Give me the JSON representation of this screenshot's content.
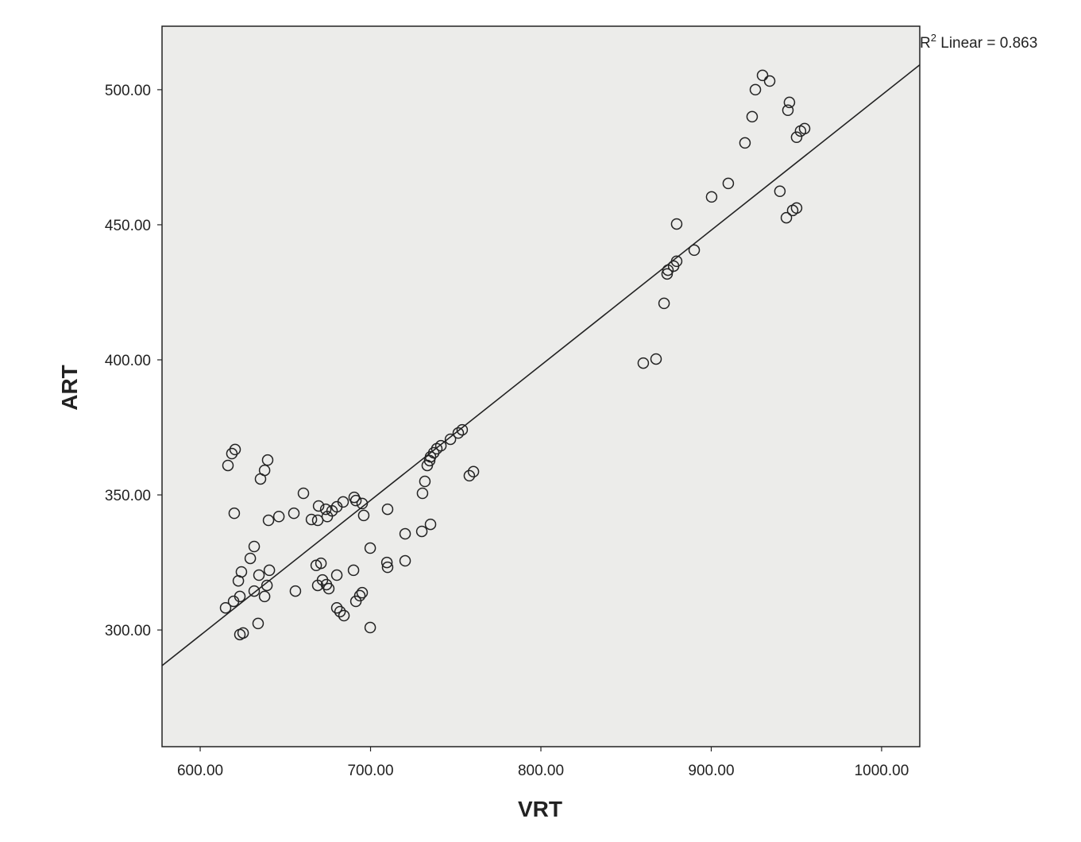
{
  "chart_data": {
    "type": "scatter",
    "title": "",
    "xlabel": "VRT",
    "ylabel": "ART",
    "xlim": [
      577.6,
      1022.4
    ],
    "ylim": [
      256.8,
      523.5
    ],
    "grid": false,
    "background": "#ececea",
    "xticks": [
      600,
      700,
      800,
      900,
      1000
    ],
    "yticks": [
      300,
      350,
      400,
      450,
      500
    ],
    "xtick_labels": [
      "600.00",
      "700.00",
      "800.00",
      "900.00",
      "1000.00"
    ],
    "ytick_labels": [
      "300.00",
      "350.00",
      "400.00",
      "450.00",
      "500.00"
    ],
    "fit_line": {
      "type": "linear",
      "intercept": -2.0,
      "slope": 0.5,
      "r2": 0.863
    },
    "annotation": {
      "prefix": "R",
      "sup": "2",
      "suffix": " Linear = 0.863"
    },
    "points": [
      [
        930.1,
        505.3
      ],
      [
        934.3,
        503.2
      ],
      [
        925.9,
        500.0
      ],
      [
        945.9,
        495.3
      ],
      [
        945.0,
        492.4
      ],
      [
        924.0,
        490.0
      ],
      [
        954.8,
        485.6
      ],
      [
        952.4,
        484.7
      ],
      [
        950.1,
        482.4
      ],
      [
        919.8,
        480.3
      ],
      [
        910.0,
        465.3
      ],
      [
        900.2,
        460.3
      ],
      [
        940.3,
        462.4
      ],
      [
        950.1,
        456.2
      ],
      [
        947.8,
        455.3
      ],
      [
        944.1,
        452.6
      ],
      [
        879.7,
        450.3
      ],
      [
        890.0,
        440.6
      ],
      [
        879.7,
        436.5
      ],
      [
        877.9,
        434.7
      ],
      [
        874.6,
        433.2
      ],
      [
        874.1,
        431.8
      ],
      [
        872.3,
        420.9
      ],
      [
        867.6,
        400.3
      ],
      [
        860.1,
        398.8
      ],
      [
        753.8,
        374.1
      ],
      [
        751.5,
        372.9
      ],
      [
        746.9,
        370.6
      ],
      [
        741.3,
        368.2
      ],
      [
        738.9,
        367.1
      ],
      [
        737.1,
        365.6
      ],
      [
        735.2,
        364.1
      ],
      [
        734.7,
        362.7
      ],
      [
        733.3,
        360.9
      ],
      [
        760.4,
        358.6
      ],
      [
        758.0,
        357.1
      ],
      [
        731.9,
        355.0
      ],
      [
        730.5,
        350.6
      ],
      [
        620.5,
        366.8
      ],
      [
        618.6,
        365.3
      ],
      [
        616.3,
        360.9
      ],
      [
        639.6,
        362.9
      ],
      [
        637.8,
        359.1
      ],
      [
        635.4,
        355.9
      ],
      [
        620.0,
        343.2
      ],
      [
        660.6,
        350.6
      ],
      [
        655.0,
        343.2
      ],
      [
        646.2,
        342.0
      ],
      [
        640.1,
        340.6
      ],
      [
        665.3,
        340.9
      ],
      [
        669.0,
        340.6
      ],
      [
        669.5,
        345.9
      ],
      [
        673.7,
        344.7
      ],
      [
        674.6,
        342.0
      ],
      [
        677.4,
        344.1
      ],
      [
        680.2,
        345.6
      ],
      [
        683.9,
        347.4
      ],
      [
        690.4,
        349.1
      ],
      [
        691.4,
        347.9
      ],
      [
        695.1,
        346.8
      ],
      [
        696.0,
        342.4
      ],
      [
        710.0,
        344.7
      ],
      [
        720.3,
        335.6
      ],
      [
        730.1,
        336.5
      ],
      [
        735.2,
        339.1
      ],
      [
        699.8,
        330.3
      ],
      [
        631.7,
        330.9
      ],
      [
        629.4,
        326.5
      ],
      [
        624.2,
        321.5
      ],
      [
        622.4,
        318.2
      ],
      [
        634.5,
        320.3
      ],
      [
        640.6,
        322.1
      ],
      [
        639.2,
        316.5
      ],
      [
        637.8,
        312.4
      ],
      [
        631.7,
        314.4
      ],
      [
        623.3,
        312.4
      ],
      [
        619.6,
        310.6
      ],
      [
        614.9,
        308.2
      ],
      [
        655.9,
        314.4
      ],
      [
        668.1,
        323.9
      ],
      [
        670.9,
        324.7
      ],
      [
        671.8,
        318.5
      ],
      [
        669.0,
        316.5
      ],
      [
        674.1,
        316.8
      ],
      [
        675.5,
        315.3
      ],
      [
        680.2,
        320.3
      ],
      [
        690.0,
        322.1
      ],
      [
        709.6,
        325.0
      ],
      [
        710.0,
        323.2
      ],
      [
        720.3,
        325.6
      ],
      [
        680.2,
        308.2
      ],
      [
        682.1,
        306.8
      ],
      [
        684.4,
        305.3
      ],
      [
        695.1,
        313.8
      ],
      [
        693.7,
        312.7
      ],
      [
        691.4,
        310.6
      ],
      [
        699.8,
        300.9
      ],
      [
        634.0,
        302.4
      ],
      [
        625.2,
        298.9
      ],
      [
        623.3,
        298.3
      ]
    ]
  }
}
